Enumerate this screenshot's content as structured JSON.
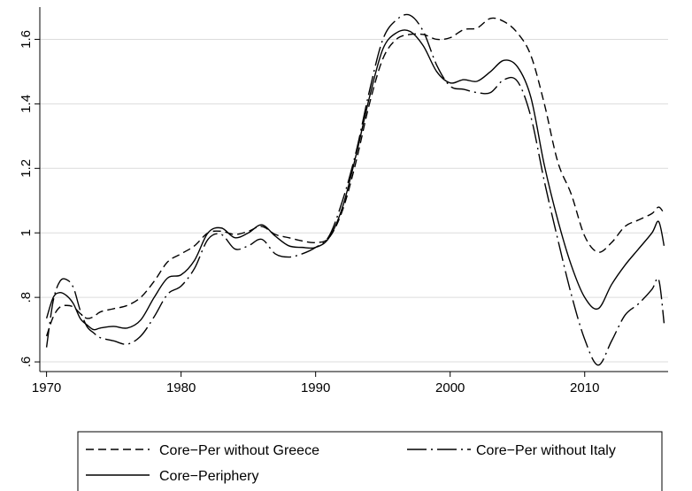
{
  "chart_data": {
    "type": "line",
    "title": "",
    "xlabel": "",
    "ylabel": "",
    "xlim": [
      1969.5,
      2016.2
    ],
    "ylim": [
      0.57,
      1.7
    ],
    "xticks": [
      1970,
      1980,
      1990,
      2000,
      2010
    ],
    "xtick_labels": [
      "1970",
      "1980",
      "1990",
      "2000",
      "2010"
    ],
    "yticks": [
      0.6,
      0.8,
      1.0,
      1.2,
      1.4,
      1.6
    ],
    "ytick_labels": [
      ".6",
      ".8",
      "1",
      "1.2",
      "1.4",
      "1.6"
    ],
    "grid": true,
    "legend_position": "bottom",
    "series": [
      {
        "name": "Core−Per without Greece",
        "dash": "dashed",
        "points": [
          [
            1970,
            0.68
          ],
          [
            1970.5,
            0.74
          ],
          [
            1971,
            0.77
          ],
          [
            1971.5,
            0.775
          ],
          [
            1972,
            0.77
          ],
          [
            1972.5,
            0.75
          ],
          [
            1973,
            0.735
          ],
          [
            1973.5,
            0.74
          ],
          [
            1974,
            0.755
          ],
          [
            1975,
            0.765
          ],
          [
            1976,
            0.775
          ],
          [
            1977,
            0.8
          ],
          [
            1978,
            0.85
          ],
          [
            1979,
            0.91
          ],
          [
            1980,
            0.935
          ],
          [
            1981,
            0.96
          ],
          [
            1982,
            1.0
          ],
          [
            1983,
            1.005
          ],
          [
            1984,
            0.995
          ],
          [
            1985,
            1.005
          ],
          [
            1986,
            1.02
          ],
          [
            1987,
            0.995
          ],
          [
            1988,
            0.985
          ],
          [
            1989,
            0.975
          ],
          [
            1990,
            0.97
          ],
          [
            1991,
            0.985
          ],
          [
            1992,
            1.07
          ],
          [
            1993,
            1.22
          ],
          [
            1994,
            1.4
          ],
          [
            1995,
            1.54
          ],
          [
            1996,
            1.6
          ],
          [
            1997,
            1.615
          ],
          [
            1998,
            1.615
          ],
          [
            1999,
            1.6
          ],
          [
            2000,
            1.605
          ],
          [
            2001,
            1.63
          ],
          [
            2002,
            1.635
          ],
          [
            2003,
            1.665
          ],
          [
            2004,
            1.655
          ],
          [
            2005,
            1.62
          ],
          [
            2006,
            1.55
          ],
          [
            2007,
            1.4
          ],
          [
            2008,
            1.22
          ],
          [
            2009,
            1.12
          ],
          [
            2010,
            0.99
          ],
          [
            2011,
            0.94
          ],
          [
            2012,
            0.97
          ],
          [
            2013,
            1.02
          ],
          [
            2014,
            1.04
          ],
          [
            2015,
            1.06
          ],
          [
            2015.5,
            1.08
          ],
          [
            2015.9,
            1.06
          ]
        ]
      },
      {
        "name": "Core−Per without Italy",
        "dash": "dashdot",
        "points": [
          [
            1970,
            0.645
          ],
          [
            1970.5,
            0.79
          ],
          [
            1971,
            0.85
          ],
          [
            1971.5,
            0.855
          ],
          [
            1972,
            0.83
          ],
          [
            1972.5,
            0.76
          ],
          [
            1973,
            0.71
          ],
          [
            1973.5,
            0.69
          ],
          [
            1974,
            0.675
          ],
          [
            1975,
            0.665
          ],
          [
            1976,
            0.655
          ],
          [
            1977,
            0.68
          ],
          [
            1978,
            0.74
          ],
          [
            1979,
            0.81
          ],
          [
            1980,
            0.835
          ],
          [
            1981,
            0.89
          ],
          [
            1982,
            0.98
          ],
          [
            1983,
            0.995
          ],
          [
            1984,
            0.95
          ],
          [
            1985,
            0.96
          ],
          [
            1986,
            0.98
          ],
          [
            1987,
            0.935
          ],
          [
            1988,
            0.925
          ],
          [
            1989,
            0.935
          ],
          [
            1990,
            0.955
          ],
          [
            1991,
            0.99
          ],
          [
            1992,
            1.1
          ],
          [
            1993,
            1.25
          ],
          [
            1994,
            1.44
          ],
          [
            1995,
            1.6
          ],
          [
            1996,
            1.66
          ],
          [
            1997,
            1.675
          ],
          [
            1998,
            1.625
          ],
          [
            1999,
            1.52
          ],
          [
            2000,
            1.455
          ],
          [
            2001,
            1.445
          ],
          [
            2002,
            1.435
          ],
          [
            2003,
            1.435
          ],
          [
            2004,
            1.475
          ],
          [
            2005,
            1.47
          ],
          [
            2006,
            1.36
          ],
          [
            2007,
            1.16
          ],
          [
            2008,
            0.98
          ],
          [
            2009,
            0.81
          ],
          [
            2010,
            0.67
          ],
          [
            2011,
            0.59
          ],
          [
            2012,
            0.665
          ],
          [
            2013,
            0.745
          ],
          [
            2014,
            0.78
          ],
          [
            2015,
            0.825
          ],
          [
            2015.5,
            0.855
          ],
          [
            2015.9,
            0.72
          ]
        ]
      },
      {
        "name": "Core−Periphery",
        "dash": "solid",
        "points": [
          [
            1970,
            0.735
          ],
          [
            1970.5,
            0.8
          ],
          [
            1971,
            0.815
          ],
          [
            1971.5,
            0.805
          ],
          [
            1972,
            0.78
          ],
          [
            1972.5,
            0.735
          ],
          [
            1973,
            0.715
          ],
          [
            1973.5,
            0.7
          ],
          [
            1974,
            0.705
          ],
          [
            1975,
            0.71
          ],
          [
            1976,
            0.705
          ],
          [
            1977,
            0.73
          ],
          [
            1978,
            0.8
          ],
          [
            1979,
            0.86
          ],
          [
            1980,
            0.87
          ],
          [
            1981,
            0.915
          ],
          [
            1982,
            1.0
          ],
          [
            1983,
            1.015
          ],
          [
            1984,
            0.985
          ],
          [
            1985,
            1.0
          ],
          [
            1986,
            1.025
          ],
          [
            1987,
            0.99
          ],
          [
            1988,
            0.96
          ],
          [
            1989,
            0.955
          ],
          [
            1990,
            0.955
          ],
          [
            1991,
            0.985
          ],
          [
            1992,
            1.08
          ],
          [
            1993,
            1.24
          ],
          [
            1994,
            1.42
          ],
          [
            1995,
            1.57
          ],
          [
            1996,
            1.62
          ],
          [
            1997,
            1.625
          ],
          [
            1998,
            1.58
          ],
          [
            1999,
            1.5
          ],
          [
            2000,
            1.465
          ],
          [
            2001,
            1.475
          ],
          [
            2002,
            1.47
          ],
          [
            2003,
            1.5
          ],
          [
            2004,
            1.535
          ],
          [
            2005,
            1.515
          ],
          [
            2006,
            1.42
          ],
          [
            2007,
            1.21
          ],
          [
            2008,
            1.04
          ],
          [
            2009,
            0.9
          ],
          [
            2010,
            0.8
          ],
          [
            2011,
            0.765
          ],
          [
            2012,
            0.84
          ],
          [
            2013,
            0.9
          ],
          [
            2014,
            0.95
          ],
          [
            2015,
            1.0
          ],
          [
            2015.5,
            1.035
          ],
          [
            2015.9,
            0.96
          ]
        ]
      }
    ]
  }
}
